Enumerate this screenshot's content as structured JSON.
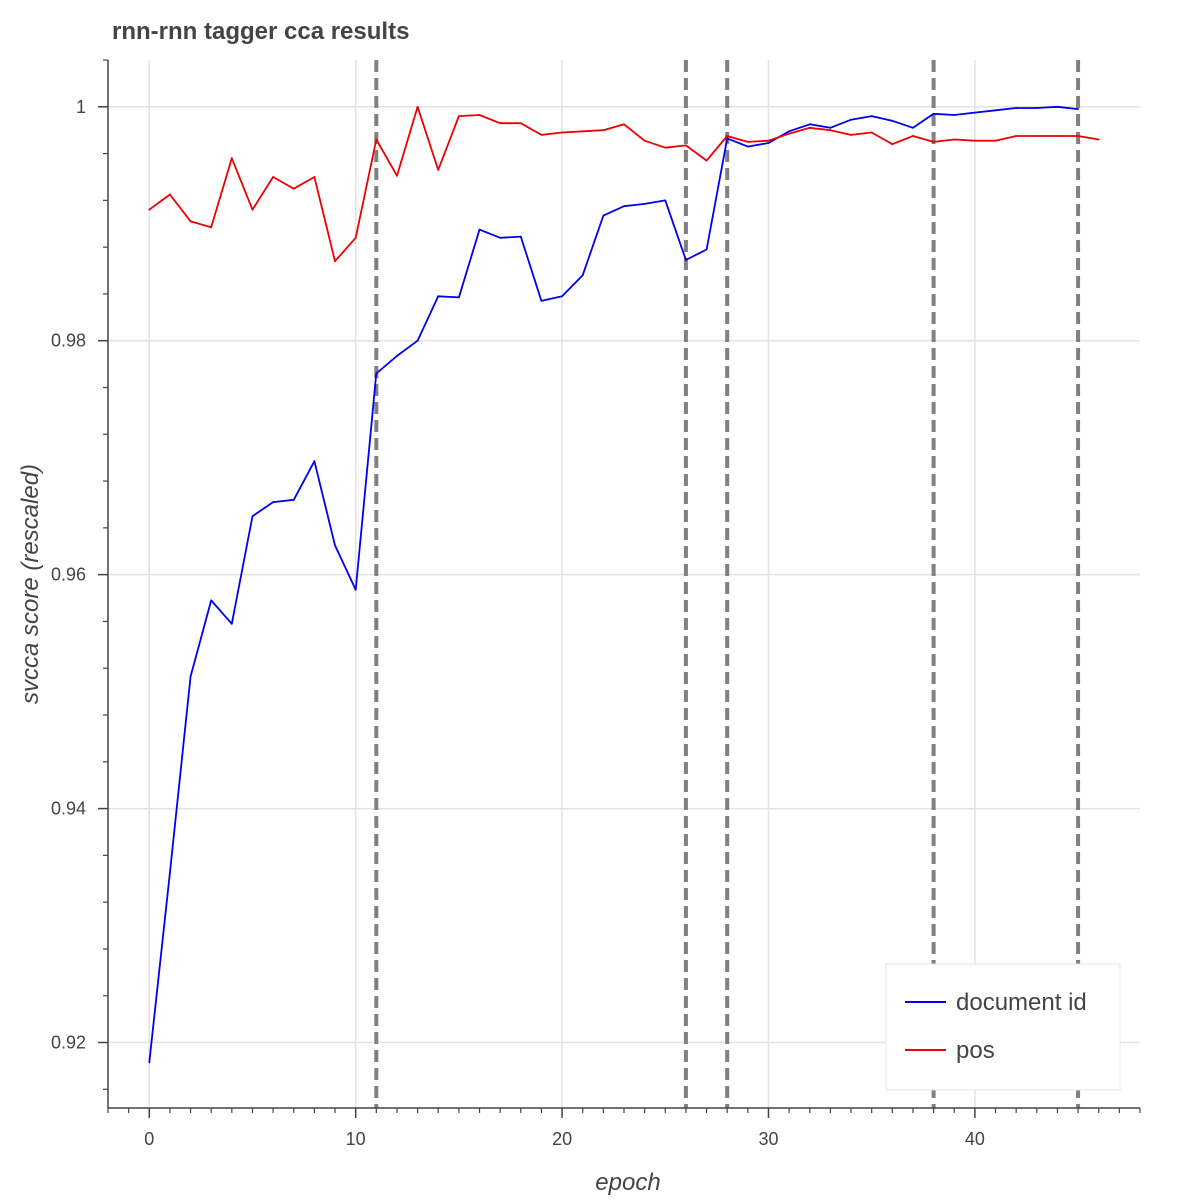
{
  "chart_data": {
    "type": "line",
    "title": "rnn-rnn tagger cca results",
    "xlabel": "epoch",
    "ylabel": "svcca score (rescaled)",
    "xlim": [
      -2,
      48
    ],
    "ylim": [
      0.9144,
      1.004
    ],
    "x_ticks": [
      0,
      10,
      20,
      30,
      40
    ],
    "x_tick_labels": [
      "0",
      "10",
      "20",
      "30",
      "40"
    ],
    "y_ticks": [
      0.92,
      0.94,
      0.96,
      0.98,
      1.0
    ],
    "y_tick_labels": [
      "0.92",
      "0.94",
      "0.96",
      "0.98",
      "1"
    ],
    "grid": true,
    "legend_position": "bottom-right",
    "vertical_markers": [
      11,
      26,
      28,
      38,
      45
    ],
    "series": [
      {
        "name": "document id",
        "color": "#0000ee",
        "x": [
          0,
          1,
          2,
          3,
          4,
          5,
          6,
          7,
          8,
          9,
          10,
          11,
          12,
          13,
          14,
          15,
          16,
          17,
          18,
          19,
          20,
          21,
          22,
          23,
          24,
          25,
          26,
          27,
          28,
          29,
          30,
          31,
          32,
          33,
          34,
          35,
          36,
          37,
          38,
          39,
          40,
          41,
          42,
          43,
          44,
          45
        ],
        "values": [
          0.9183,
          0.9345,
          0.9513,
          0.9578,
          0.9558,
          0.965,
          0.9662,
          0.9664,
          0.9697,
          0.9625,
          0.9587,
          0.9772,
          0.9787,
          0.98,
          0.9838,
          0.9837,
          0.9895,
          0.9888,
          0.9889,
          0.9834,
          0.9838,
          0.9856,
          0.9907,
          0.9915,
          0.9917,
          0.992,
          0.9869,
          0.9878,
          0.9973,
          0.9966,
          0.9969,
          0.9979,
          0.9985,
          0.9982,
          0.9989,
          0.9992,
          0.9988,
          0.9982,
          0.9994,
          0.9993,
          0.9995,
          0.9997,
          0.9999,
          0.9999,
          1.0,
          0.9998
        ]
      },
      {
        "name": "pos",
        "color": "#ee0000",
        "x": [
          0,
          1,
          2,
          3,
          4,
          5,
          6,
          7,
          8,
          9,
          10,
          11,
          12,
          13,
          14,
          15,
          16,
          17,
          18,
          19,
          20,
          21,
          22,
          23,
          24,
          25,
          26,
          27,
          28,
          29,
          30,
          31,
          32,
          33,
          34,
          35,
          36,
          37,
          38,
          39,
          40,
          41,
          42,
          43,
          44,
          45,
          46
        ],
        "values": [
          0.9912,
          0.9925,
          0.9902,
          0.9897,
          0.9956,
          0.9912,
          0.994,
          0.993,
          0.994,
          0.9868,
          0.9888,
          0.9972,
          0.9941,
          1.0,
          0.9946,
          0.9992,
          0.9993,
          0.9986,
          0.9986,
          0.9976,
          0.9978,
          0.9979,
          0.998,
          0.9985,
          0.9971,
          0.9965,
          0.9967,
          0.9954,
          0.9975,
          0.997,
          0.9971,
          0.9977,
          0.9982,
          0.998,
          0.9976,
          0.9978,
          0.9968,
          0.9975,
          0.997,
          0.9972,
          0.9971,
          0.9971,
          0.9975,
          0.9975,
          0.9975,
          0.9975,
          0.9972
        ]
      }
    ]
  }
}
